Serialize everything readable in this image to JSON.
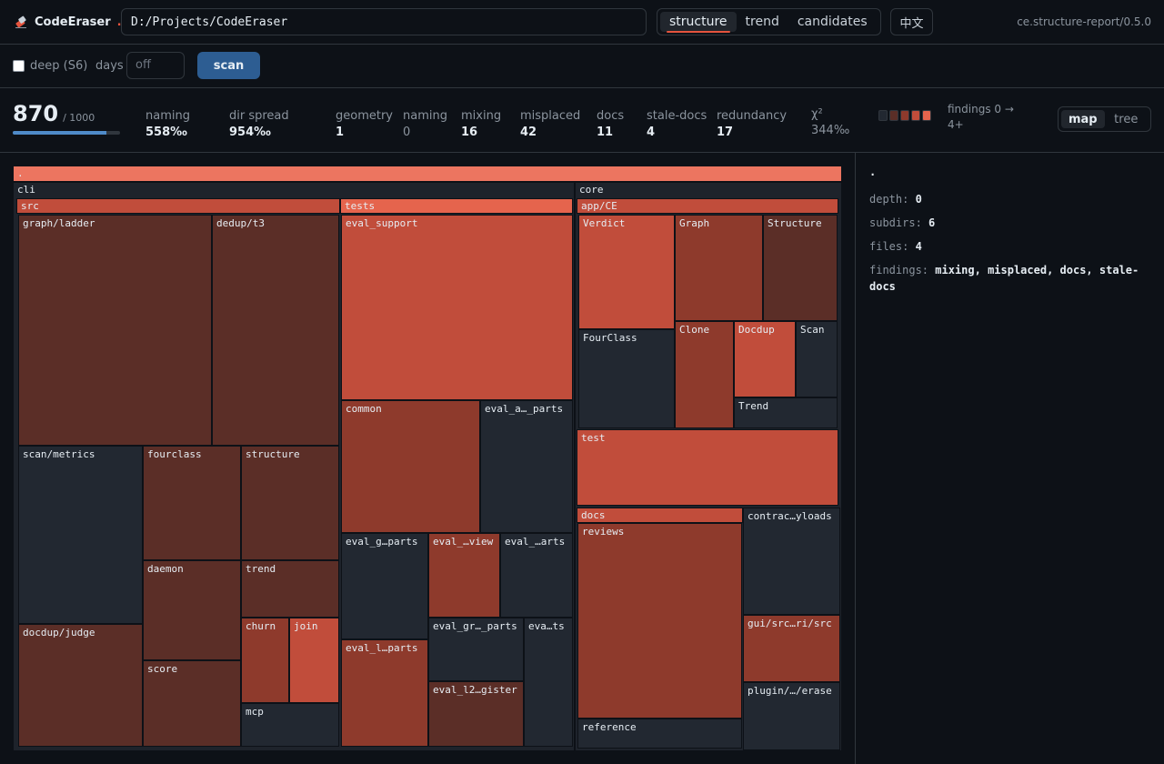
{
  "app": {
    "name": "CodeEraser",
    "dot": ".",
    "version": "ce.structure-report/0.5.0"
  },
  "path_value": "D:/Projects/CodeEraser",
  "tabs": [
    {
      "label": "structure",
      "active": true
    },
    {
      "label": "trend",
      "active": false
    },
    {
      "label": "candidates",
      "active": false
    }
  ],
  "lang_button": "中文",
  "scan_controls": {
    "deep_label": "deep (S6)",
    "deep_checked": false,
    "days_label": "days",
    "days_placeholder": "off",
    "scan_label": "scan"
  },
  "score": {
    "value": "870",
    "max": "/ 1000",
    "fraction": 0.87
  },
  "metrics": {
    "naming": {
      "label": "naming",
      "value": "558‰"
    },
    "dir_spread": {
      "label": "dir spread",
      "value": "954‰"
    },
    "geometry": {
      "label": "geometry",
      "value": "1"
    },
    "naming_count": {
      "label": "naming",
      "value": "0"
    },
    "mixing": {
      "label": "mixing",
      "value": "16"
    },
    "misplaced": {
      "label": "misplaced",
      "value": "42"
    },
    "docs": {
      "label": "docs",
      "value": "11"
    },
    "stale_docs": {
      "label": "stale-docs",
      "value": "4"
    },
    "redundancy": {
      "label": "redundancy",
      "value": "17"
    },
    "chi2": {
      "label": "χ²",
      "value": "344‰"
    }
  },
  "legend": {
    "text": "findings 0 → 4+",
    "colors": [
      "#222831",
      "#5b2e27",
      "#8e3a2c",
      "#c14d3b",
      "#e5644d"
    ]
  },
  "view_toggle": [
    {
      "label": "map",
      "active": true
    },
    {
      "label": "tree",
      "active": false
    }
  ],
  "treemap": {
    "root": ".",
    "cli": "cli",
    "src": "src",
    "graph_ladder": "graph/ladder",
    "dedup_t3": "dedup/t3",
    "scan_metrics": "scan/metrics",
    "fourclass": "fourclass",
    "structure": "structure",
    "daemon": "daemon",
    "trend": "trend",
    "churn": "churn",
    "join": "join",
    "docdup_judge": "docdup/judge",
    "score": "score",
    "mcp": "mcp",
    "tests": "tests",
    "eval_support": "eval_support",
    "common": "common",
    "eval_a_parts": "eval_a…_parts",
    "eval_g_parts": "eval_g…parts",
    "eval_view": "eval_…view",
    "eval_arts": "eval_…arts",
    "eval_gr_parts": "eval_gr…_parts",
    "eva_ts": "eva…ts",
    "eval_l_parts": "eval_l…parts",
    "eval_l2_gister": "eval_l2…gister",
    "core": "core",
    "app_ce": "app/CE",
    "verdict": "Verdict",
    "graph": "Graph",
    "structure_core": "Structure",
    "fourclass_core": "FourClass",
    "clone": "Clone",
    "docdup": "Docdup",
    "scan": "Scan",
    "trend_core": "Trend",
    "test": "test",
    "docs": "docs",
    "reviews": "reviews",
    "reference": "reference",
    "contrac_yloads": "contrac…yloads",
    "gui_src": "gui/src…ri/src",
    "plugin_erase": "plugin/…/erase"
  },
  "detail": {
    "title": ".",
    "depth_label": "depth:",
    "depth": "0",
    "subdirs_label": "subdirs:",
    "subdirs": "6",
    "files_label": "files:",
    "files": "4",
    "findings_label": "findings:",
    "findings": "mixing, misplaced, docs, stale-docs"
  }
}
